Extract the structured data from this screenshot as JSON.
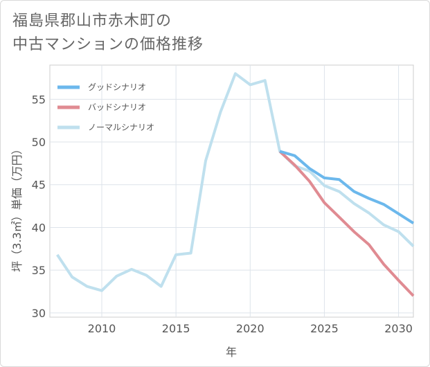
{
  "title": {
    "line1": "福島県郡山市赤木町の",
    "line2": "中古マンションの価格推移"
  },
  "chart_data": {
    "type": "line",
    "xlabel": "年",
    "ylabel": "坪（3.3㎡）単価（万円）",
    "xlim": [
      2006.5,
      2031
    ],
    "ylim": [
      29.5,
      59
    ],
    "xticks": [
      2010,
      2015,
      2020,
      2025,
      2030
    ],
    "yticks": [
      30,
      35,
      40,
      45,
      50,
      55
    ],
    "legend_position": "top-left",
    "series": [
      {
        "name": "グッドシナリオ",
        "color": "#6cb8ec",
        "x": [
          2022,
          2023,
          2024,
          2025,
          2026,
          2027,
          2028,
          2029,
          2030,
          2031
        ],
        "values": [
          48.9,
          48.4,
          46.9,
          45.8,
          45.6,
          44.2,
          43.4,
          42.7,
          41.6,
          40.5
        ]
      },
      {
        "name": "バッドシナリオ",
        "color": "#e08b92",
        "x": [
          2022,
          2023,
          2024,
          2025,
          2026,
          2027,
          2028,
          2029,
          2030,
          2031
        ],
        "values": [
          48.9,
          47.3,
          45.4,
          42.9,
          41.2,
          39.5,
          38.0,
          35.7,
          33.8,
          32.0
        ]
      },
      {
        "name": "ノーマルシナリオ",
        "color": "#bfe0ee",
        "x": [
          2007,
          2008,
          2009,
          2010,
          2011,
          2012,
          2013,
          2014,
          2015,
          2016,
          2017,
          2018,
          2019,
          2020,
          2021,
          2022,
          2023,
          2024,
          2025,
          2026,
          2027,
          2028,
          2029,
          2030,
          2031
        ],
        "values": [
          36.8,
          34.2,
          33.1,
          32.6,
          34.3,
          35.1,
          34.4,
          33.1,
          36.8,
          37.0,
          47.8,
          53.5,
          58.0,
          56.7,
          57.2,
          48.9,
          47.2,
          46.6,
          44.9,
          44.2,
          42.8,
          41.7,
          40.3,
          39.5,
          37.8
        ]
      }
    ]
  }
}
